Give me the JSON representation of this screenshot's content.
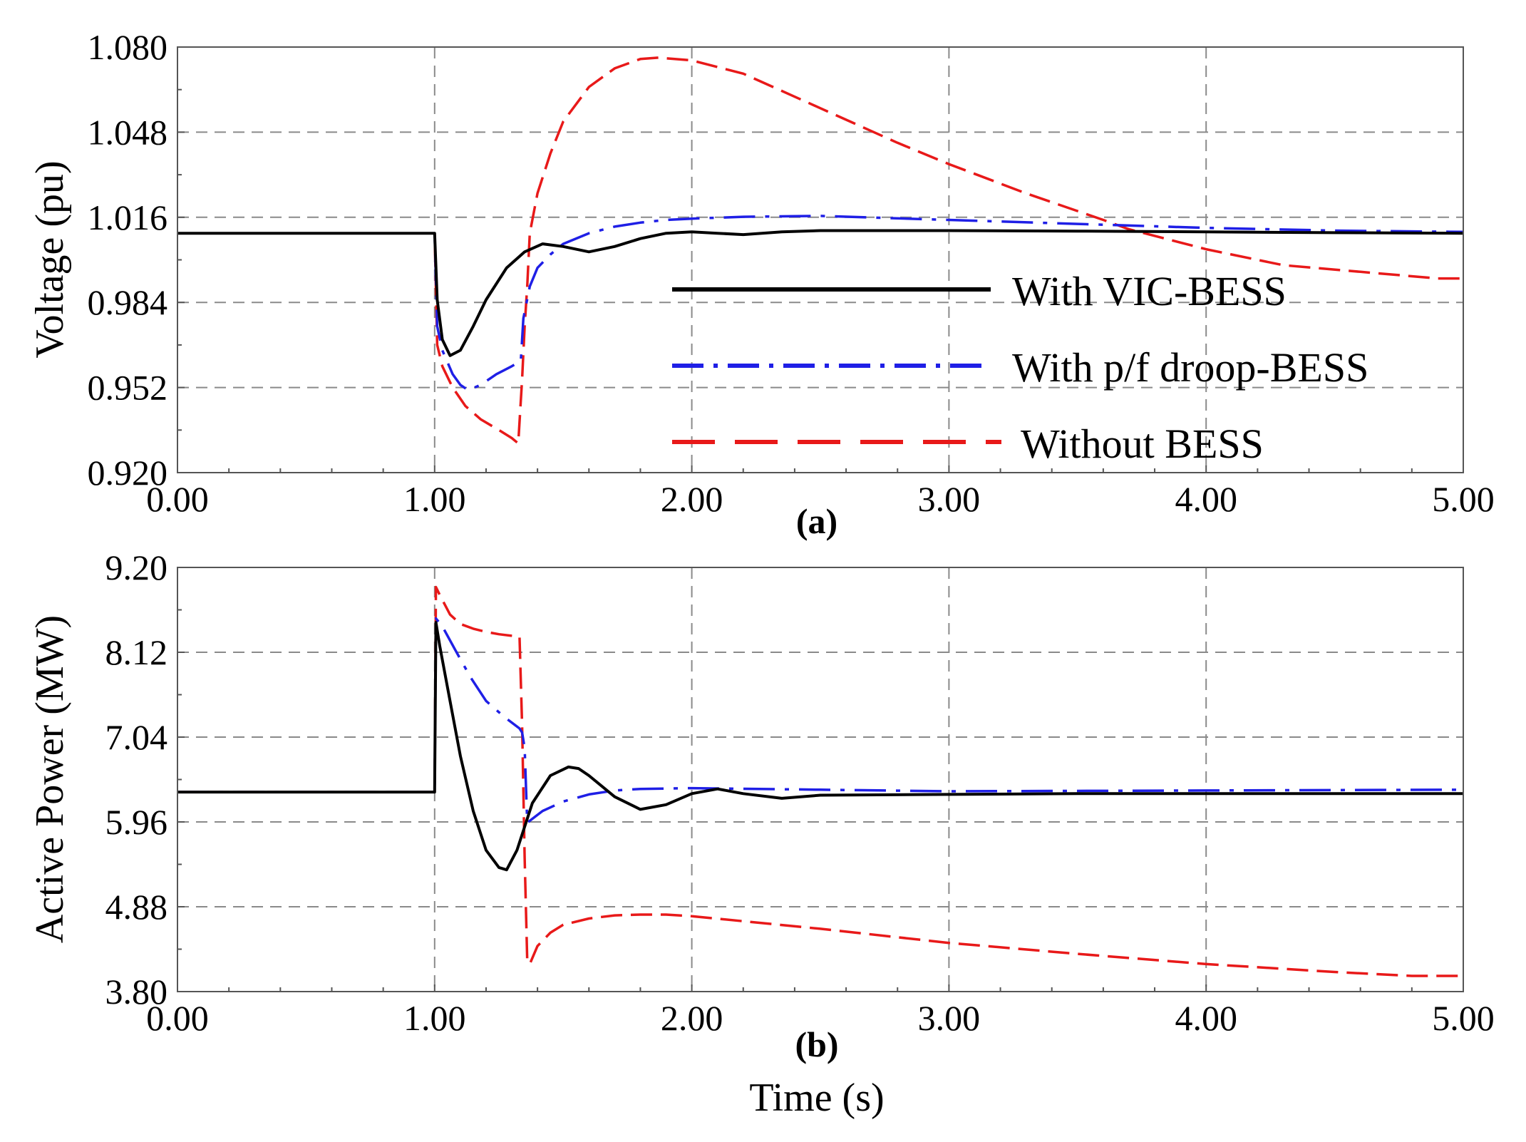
{
  "xlabel": "Time (s)",
  "colors": {
    "vic": "#000000",
    "droop": "#1f1fe6",
    "none": "#e81919",
    "grid": "#8a8a8a"
  },
  "legend": [
    {
      "key": "vic",
      "label": "With VIC-BESS",
      "color": "#000000",
      "dash": "solid"
    },
    {
      "key": "droop",
      "label": "With p/f droop-BESS",
      "color": "#1f1fe6",
      "dash": "dashdot"
    },
    {
      "key": "none",
      "label": "Without BESS",
      "color": "#e81919",
      "dash": "dashed"
    }
  ],
  "chart_data": [
    {
      "type": "line",
      "panel_label": "(a)",
      "ylabel": "Voltage (pu)",
      "xlim": [
        0,
        5
      ],
      "ylim": [
        0.92,
        1.08
      ],
      "xticks": [
        "0.00",
        "1.00",
        "2.00",
        "3.00",
        "4.00",
        "5.00"
      ],
      "yticks": [
        "0.920",
        "0.952",
        "0.984",
        "1.016",
        "1.048",
        "1.080"
      ],
      "series": [
        {
          "key": "vic",
          "name": "With VIC-BESS",
          "x": [
            0,
            1.0,
            1.01,
            1.03,
            1.06,
            1.1,
            1.15,
            1.2,
            1.28,
            1.35,
            1.42,
            1.5,
            1.6,
            1.7,
            1.8,
            1.9,
            2.0,
            2.1,
            2.2,
            2.35,
            2.5,
            3.0,
            3.5,
            4.0,
            4.5,
            5.0
          ],
          "y": [
            1.01,
            1.01,
            0.985,
            0.97,
            0.964,
            0.966,
            0.975,
            0.985,
            0.997,
            1.003,
            1.006,
            1.005,
            1.003,
            1.005,
            1.008,
            1.01,
            1.0105,
            1.01,
            1.0095,
            1.0105,
            1.011,
            1.011,
            1.0108,
            1.0105,
            1.0102,
            1.01
          ]
        },
        {
          "key": "droop",
          "name": "With p/f droop-BESS",
          "x": [
            0,
            1.0,
            1.01,
            1.03,
            1.07,
            1.1,
            1.13,
            1.18,
            1.24,
            1.3,
            1.335,
            1.345,
            1.37,
            1.4,
            1.45,
            1.5,
            1.6,
            1.7,
            1.8,
            1.9,
            2.0,
            2.2,
            2.5,
            3.0,
            3.5,
            4.0,
            4.5,
            5.0
          ],
          "y": [
            1.01,
            1.01,
            0.975,
            0.966,
            0.957,
            0.953,
            0.951,
            0.953,
            0.957,
            0.96,
            0.962,
            0.978,
            0.99,
            0.997,
            1.002,
            1.006,
            1.01,
            1.0125,
            1.014,
            1.015,
            1.0155,
            1.0162,
            1.0165,
            1.015,
            1.0135,
            1.012,
            1.011,
            1.0105
          ]
        },
        {
          "key": "none",
          "name": "Without BESS",
          "x": [
            0,
            1.0,
            1.01,
            1.03,
            1.07,
            1.12,
            1.18,
            1.25,
            1.3,
            1.325,
            1.34,
            1.35,
            1.36,
            1.37,
            1.4,
            1.45,
            1.5,
            1.6,
            1.7,
            1.8,
            1.87,
            2.0,
            2.2,
            2.5,
            2.8,
            3.0,
            3.3,
            3.6,
            3.7,
            4.0,
            4.3,
            4.6,
            4.9,
            5.0
          ],
          "y": [
            1.01,
            1.01,
            0.968,
            0.96,
            0.952,
            0.945,
            0.94,
            0.936,
            0.933,
            0.931,
            0.955,
            0.975,
            0.99,
            1.01,
            1.025,
            1.04,
            1.052,
            1.065,
            1.072,
            1.0755,
            1.076,
            1.075,
            1.07,
            1.057,
            1.044,
            1.036,
            1.025,
            1.015,
            1.0115,
            1.004,
            0.998,
            0.9955,
            0.993,
            0.993
          ]
        }
      ]
    },
    {
      "type": "line",
      "panel_label": "(b)",
      "ylabel": "Active Power (MW)",
      "xlim": [
        0,
        5
      ],
      "ylim": [
        3.8,
        9.2
      ],
      "xticks": [
        "0.00",
        "1.00",
        "2.00",
        "3.00",
        "4.00",
        "5.00"
      ],
      "yticks": [
        "3.80",
        "4.88",
        "5.96",
        "7.04",
        "8.12",
        "9.20"
      ],
      "series": [
        {
          "key": "vic",
          "name": "With VIC-BESS",
          "x": [
            0,
            1.0,
            1.005,
            1.02,
            1.06,
            1.1,
            1.15,
            1.2,
            1.25,
            1.28,
            1.32,
            1.38,
            1.45,
            1.52,
            1.56,
            1.6,
            1.7,
            1.8,
            1.9,
            2.0,
            2.1,
            2.2,
            2.35,
            2.5,
            3.0,
            3.5,
            4.0,
            5.0
          ],
          "y": [
            6.34,
            6.34,
            8.5,
            8.2,
            7.5,
            6.8,
            6.1,
            5.6,
            5.38,
            5.35,
            5.6,
            6.2,
            6.55,
            6.66,
            6.64,
            6.55,
            6.28,
            6.12,
            6.18,
            6.32,
            6.38,
            6.32,
            6.26,
            6.3,
            6.31,
            6.32,
            6.32,
            6.32
          ]
        },
        {
          "key": "droop",
          "name": "With p/f droop-BESS",
          "x": [
            0,
            1.0,
            1.005,
            1.03,
            1.08,
            1.14,
            1.2,
            1.27,
            1.33,
            1.34,
            1.35,
            1.36,
            1.38,
            1.42,
            1.5,
            1.6,
            1.7,
            1.8,
            2.0,
            2.5,
            3.0,
            4.0,
            5.0
          ],
          "y": [
            6.34,
            6.34,
            8.55,
            8.45,
            8.15,
            7.8,
            7.5,
            7.3,
            7.15,
            7.1,
            6.9,
            5.95,
            6.0,
            6.1,
            6.22,
            6.31,
            6.36,
            6.38,
            6.39,
            6.37,
            6.35,
            6.36,
            6.37
          ]
        },
        {
          "key": "none",
          "name": "Without BESS",
          "x": [
            0,
            1.0,
            1.005,
            1.02,
            1.06,
            1.1,
            1.15,
            1.2,
            1.25,
            1.3,
            1.33,
            1.34,
            1.35,
            1.36,
            1.37,
            1.4,
            1.45,
            1.5,
            1.6,
            1.7,
            1.8,
            1.9,
            2.0,
            2.5,
            3.0,
            3.5,
            4.0,
            4.5,
            4.8,
            5.0
          ],
          "y": [
            6.34,
            6.34,
            8.95,
            8.85,
            8.6,
            8.48,
            8.42,
            8.38,
            8.35,
            8.33,
            8.32,
            7.2,
            5.5,
            4.2,
            4.15,
            4.38,
            4.55,
            4.65,
            4.73,
            4.77,
            4.78,
            4.78,
            4.76,
            4.6,
            4.42,
            4.28,
            4.15,
            4.05,
            4.0,
            4.0
          ]
        }
      ]
    }
  ]
}
